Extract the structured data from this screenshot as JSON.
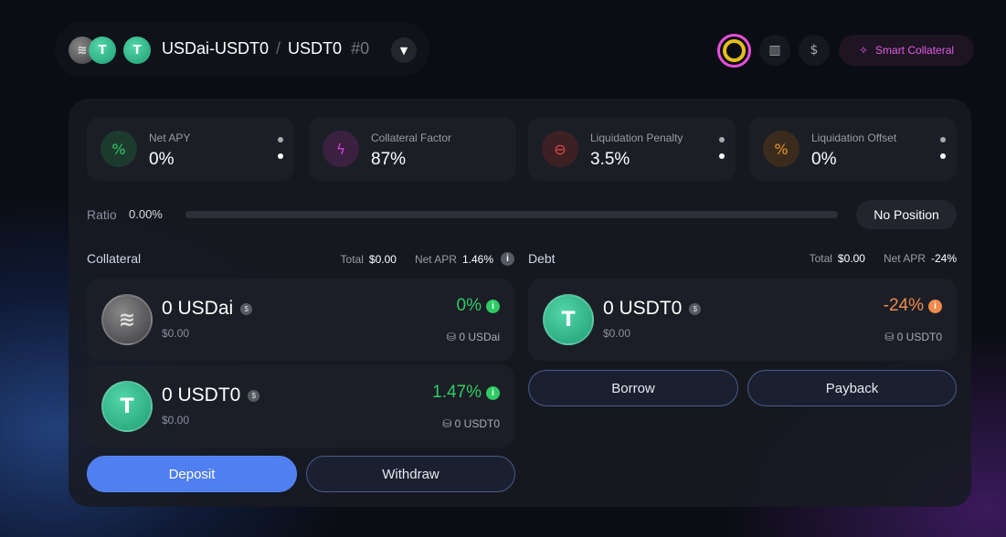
{
  "header": {
    "pair": "USDai-USDT0",
    "separator": "/",
    "quote": "USDT0",
    "index": "#0",
    "smart_label": "Smart Collateral",
    "icons": [
      "chevron-down-icon",
      "health-ring-icon",
      "chart-icon",
      "dollar-icon",
      "sparkle-icon"
    ]
  },
  "colors": {
    "accent": "#4f7ff0",
    "positive": "#2fca64",
    "negative": "#f08a4b",
    "smart": "#e05ee0"
  },
  "stats": [
    {
      "label": "Net APY",
      "value": "0%",
      "icon": "percent-icon",
      "color": "#2fca64"
    },
    {
      "label": "Collateral Factor",
      "value": "87%",
      "icon": "lightning-icon",
      "color": "#d93ad9"
    },
    {
      "label": "Liquidation Penalty",
      "value": "3.5%",
      "icon": "minus-circle-icon",
      "color": "#e54848"
    },
    {
      "label": "Liquidation Offset",
      "value": "0%",
      "icon": "percent-icon",
      "color": "#e6962e"
    }
  ],
  "ratio": {
    "label": "Ratio",
    "value": "0.00%",
    "progress": 0,
    "status": "No Position"
  },
  "collateral": {
    "title": "Collateral",
    "total_label": "Total",
    "total": "$0.00",
    "apr_label": "Net APR",
    "apr": "1.46%",
    "assets": [
      {
        "amount": "0 USDai",
        "usd": "$0.00",
        "apr": "0%",
        "balance": "0 USDai"
      },
      {
        "amount": "0 USDT0",
        "usd": "$0.00",
        "apr": "1.47%",
        "balance": "0 USDT0"
      }
    ],
    "deposit": "Deposit",
    "withdraw": "Withdraw"
  },
  "debt": {
    "title": "Debt",
    "total_label": "Total",
    "total": "$0.00",
    "apr_label": "Net APR",
    "apr": "-24%",
    "assets": [
      {
        "amount": "0 USDT0",
        "usd": "$0.00",
        "apr": "-24%",
        "balance": "0 USDT0"
      }
    ],
    "borrow": "Borrow",
    "payback": "Payback"
  }
}
